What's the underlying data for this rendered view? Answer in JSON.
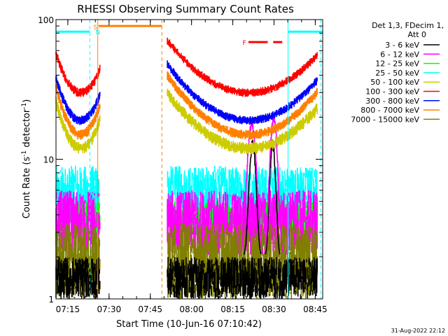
{
  "chart_data": {
    "type": "line",
    "title": "RHESSI Observing Summary Count Rates",
    "xlabel": "Start Time (10-Jun-16 07:10:42)",
    "ylabel": "Count Rate (s",
    "ylabel_sup": "-1",
    "ylabel_tail": " detector",
    "ylabel_tail_sup": "-1",
    "ylabel_close": ")",
    "y_scale": "log",
    "ylim": [
      1,
      100
    ],
    "xlim_minutes": [
      0,
      97
    ],
    "x_ticks": [
      {
        "label": "07:15",
        "minute": 4.3
      },
      {
        "label": "07:30",
        "minute": 19.3
      },
      {
        "label": "07:45",
        "minute": 34.3
      },
      {
        "label": "08:00",
        "minute": 49.3
      },
      {
        "label": "08:15",
        "minute": 64.3
      },
      {
        "label": "08:30",
        "minute": 79.3
      },
      {
        "label": "08:45",
        "minute": 94.3
      }
    ],
    "y_ticks": [
      {
        "label": "1",
        "value": 1
      },
      {
        "label": "10",
        "value": 10
      },
      {
        "label": "100",
        "value": 100
      }
    ],
    "legend_header": [
      "Det 1,3, FDecim 1,",
      "Att 0"
    ],
    "legend_position": "right",
    "series": [
      {
        "name": "3 - 6 keV",
        "color": "#000000"
      },
      {
        "name": "6 - 12 keV",
        "color": "#ff00ff"
      },
      {
        "name": "12 - 25 keV",
        "color": "#00ff00"
      },
      {
        "name": "25 - 50 keV",
        "color": "#00ffff"
      },
      {
        "name": "50 - 100 keV",
        "color": "#cccc00"
      },
      {
        "name": "100 - 300 keV",
        "color": "#ff0000"
      },
      {
        "name": "300 - 800 keV",
        "color": "#0000ff"
      },
      {
        "name": "800 - 7000 keV",
        "color": "#ff8000"
      },
      {
        "name": "7000 - 15000 keV",
        "color": "#808000"
      }
    ],
    "envelopes": [
      {
        "series": "100 - 300 keV",
        "segments": [
          {
            "t0": 0,
            "t1": 16,
            "mid": 9,
            "edge": 57,
            "min": 30,
            "noise": 0.08
          },
          {
            "t0": 40.5,
            "t1": 95,
            "mid": 70,
            "edge": 71,
            "min": 30,
            "noise": 0.07
          }
        ]
      },
      {
        "series": "300 - 800 keV",
        "segments": [
          {
            "t0": 0,
            "t1": 16,
            "mid": 9,
            "edge": 38,
            "min": 19,
            "noise": 0.08
          },
          {
            "t0": 40.5,
            "t1": 95,
            "mid": 70,
            "edge": 48,
            "min": 19,
            "noise": 0.07
          }
        ]
      },
      {
        "series": "800 - 7000 keV",
        "segments": [
          {
            "t0": 0,
            "t1": 16,
            "mid": 9,
            "edge": 33,
            "min": 15,
            "noise": 0.09
          },
          {
            "t0": 40.5,
            "t1": 95,
            "mid": 70,
            "edge": 40,
            "min": 15,
            "noise": 0.08
          }
        ]
      },
      {
        "series": "50 - 100 keV",
        "segments": [
          {
            "t0": 0,
            "t1": 16,
            "mid": 9,
            "edge": 26,
            "min": 12,
            "noise": 0.1
          },
          {
            "t0": 40.5,
            "t1": 95,
            "mid": 70,
            "edge": 30,
            "min": 12,
            "noise": 0.1
          }
        ]
      }
    ],
    "noise_bands": [
      {
        "series": "25 - 50 keV",
        "segments": [
          {
            "t0": 0,
            "t1": 16,
            "lo": 3.5,
            "hi": 9
          },
          {
            "t0": 40.5,
            "t1": 95,
            "lo": 3.5,
            "hi": 9
          }
        ]
      },
      {
        "series": "12 - 25 keV",
        "segments": [
          {
            "t0": 0,
            "t1": 16,
            "lo": 2.8,
            "hi": 5
          },
          {
            "t0": 40.5,
            "t1": 95,
            "lo": 2.8,
            "hi": 5
          }
        ]
      },
      {
        "series": "6 - 12 keV",
        "segments": [
          {
            "t0": 0,
            "t1": 16,
            "lo": 2,
            "hi": 6
          },
          {
            "t0": 40.5,
            "t1": 95,
            "lo": 2,
            "hi": 6
          }
        ]
      },
      {
        "series": "7000 - 15000 keV",
        "segments": [
          {
            "t0": 0,
            "t1": 16,
            "lo": 1,
            "hi": 3.5
          },
          {
            "t0": 40.5,
            "t1": 95,
            "lo": 1,
            "hi": 3.5
          }
        ]
      },
      {
        "series": "3 - 6 keV",
        "segments": [
          {
            "t0": 0,
            "t1": 16,
            "lo": 1,
            "hi": 2
          },
          {
            "t0": 40.5,
            "t1": 95,
            "lo": 1,
            "hi": 2
          }
        ]
      }
    ],
    "flare_peaks": [
      {
        "series": "3 - 6 keV",
        "t": 71.5,
        "peak": 13,
        "width": 1.4
      },
      {
        "series": "3 - 6 keV",
        "t": 78.8,
        "peak": 13,
        "width": 1.2
      },
      {
        "series": "6 - 12 keV",
        "t": 71.2,
        "peak": 18,
        "width": 1.8
      },
      {
        "series": "6 - 12 keV",
        "t": 79.2,
        "peak": 20,
        "width": 1.5
      }
    ],
    "flags": [
      {
        "label": "S",
        "color": "#ff8000",
        "t": 14.3,
        "value": 89
      },
      {
        "label": "N",
        "color": "#00ffff",
        "t": 15.2,
        "value": 82
      },
      {
        "label": "F",
        "color": "#ff0000",
        "t": 68.5,
        "value": 69
      }
    ],
    "saa_bars": [
      {
        "color": "#ff8000",
        "t0": 15.5,
        "t1": 38.5,
        "value": 90
      }
    ],
    "night_bars": [
      {
        "color": "#00ffff",
        "t0": 0,
        "t1": 12.3,
        "value": 82
      },
      {
        "color": "#00ffff",
        "t0": 84.4,
        "t1": 97,
        "value": 82
      }
    ],
    "flare_bars": [
      {
        "color": "#ff0000",
        "t0": 70,
        "t1": 77,
        "value": 69
      },
      {
        "color": "#ff0000",
        "t0": 79,
        "t1": 82.3,
        "value": 69
      }
    ],
    "vlines": [
      {
        "t": 12.3,
        "color": "#00ffff",
        "dashed": true
      },
      {
        "t": 15.2,
        "color": "#ff8000",
        "dashed": false
      },
      {
        "t": 38.5,
        "color": "#ff8000",
        "dashed": true
      },
      {
        "t": 84.4,
        "color": "#00ffff",
        "dashed": false
      },
      {
        "t": 96.3,
        "color": "#00ffff",
        "dashed": true
      }
    ],
    "footer": "31-Aug-2022 22:12"
  }
}
